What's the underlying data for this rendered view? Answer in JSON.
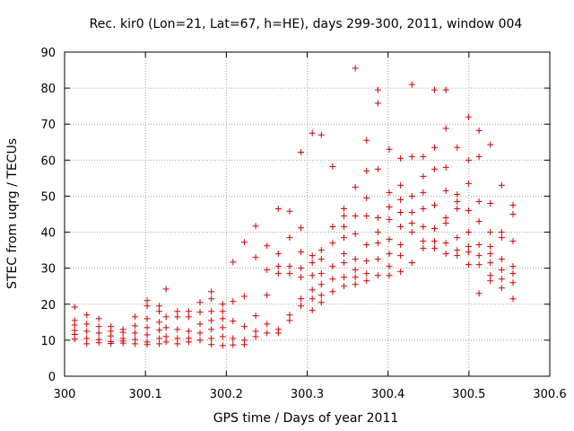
{
  "chart_data": {
    "type": "scatter",
    "title": "Rec. kir0 (Lon=21, Lat=67, h=HE), days 299-300, 2011, window 004",
    "xlabel": "GPS time / Days of year 2011",
    "ylabel": "STEC from uqrg / TECUs",
    "xlim": [
      300,
      300.6
    ],
    "ylim": [
      0,
      90
    ],
    "xticks": [
      "300",
      "300.1",
      "300.2",
      "300.3",
      "300.4",
      "300.5",
      "300.6"
    ],
    "yticks": [
      "0",
      "10",
      "20",
      "30",
      "40",
      "50",
      "60",
      "70",
      "80",
      "90"
    ],
    "marker": "+",
    "color": "#d40000",
    "series": [
      {
        "name": "STEC",
        "points": [
          [
            300.0125,
            19.2
          ],
          [
            300.0125,
            15.5
          ],
          [
            300.0125,
            14.2
          ],
          [
            300.0125,
            12.7
          ],
          [
            300.0125,
            11.6
          ],
          [
            300.0125,
            10.3
          ],
          [
            300.0274,
            17.0
          ],
          [
            300.0274,
            14.5
          ],
          [
            300.0274,
            12.5
          ],
          [
            300.0274,
            10.5
          ],
          [
            300.0274,
            9.0
          ],
          [
            300.0424,
            16.0
          ],
          [
            300.0424,
            13.8
          ],
          [
            300.0424,
            12.0
          ],
          [
            300.0424,
            10.2
          ],
          [
            300.0424,
            9.3
          ],
          [
            300.0573,
            13.8
          ],
          [
            300.0573,
            12.5
          ],
          [
            300.0573,
            11.2
          ],
          [
            300.0573,
            9.6
          ],
          [
            300.0573,
            9.1
          ],
          [
            300.0723,
            13.0
          ],
          [
            300.0723,
            12.2
          ],
          [
            300.0723,
            10.5
          ],
          [
            300.0723,
            9.8
          ],
          [
            300.0723,
            9.2
          ],
          [
            300.0872,
            16.5
          ],
          [
            300.0872,
            14.0
          ],
          [
            300.0872,
            12.0
          ],
          [
            300.0872,
            10.2
          ],
          [
            300.0872,
            9.0
          ],
          [
            300.1021,
            21.0
          ],
          [
            300.1021,
            19.5
          ],
          [
            300.1021,
            16.0
          ],
          [
            300.1021,
            13.5
          ],
          [
            300.1021,
            11.5
          ],
          [
            300.1021,
            9.5
          ],
          [
            300.1021,
            8.8
          ],
          [
            300.1171,
            19.5
          ],
          [
            300.1171,
            18.0
          ],
          [
            300.1171,
            15.0
          ],
          [
            300.1171,
            12.8
          ],
          [
            300.1171,
            10.5
          ],
          [
            300.1171,
            9.0
          ],
          [
            300.1255,
            24.2
          ],
          [
            300.1255,
            16.5
          ],
          [
            300.1255,
            13.5
          ],
          [
            300.1255,
            11.0
          ],
          [
            300.1255,
            9.5
          ],
          [
            300.1395,
            18.0
          ],
          [
            300.1395,
            16.5
          ],
          [
            300.1395,
            13.0
          ],
          [
            300.1395,
            10.5
          ],
          [
            300.1395,
            9.0
          ],
          [
            300.1535,
            18.0
          ],
          [
            300.1535,
            16.5
          ],
          [
            300.1535,
            12.5
          ],
          [
            300.1535,
            10.5
          ],
          [
            300.1535,
            9.5
          ],
          [
            300.1675,
            20.5
          ],
          [
            300.1675,
            17.8
          ],
          [
            300.1675,
            14.5
          ],
          [
            300.1675,
            12.0
          ],
          [
            300.1675,
            10.0
          ],
          [
            300.1815,
            23.5
          ],
          [
            300.1815,
            21.5
          ],
          [
            300.1815,
            18.0
          ],
          [
            300.1815,
            15.5
          ],
          [
            300.1815,
            13.0
          ],
          [
            300.1815,
            10.5
          ],
          [
            300.1815,
            8.8
          ],
          [
            300.1955,
            20.0
          ],
          [
            300.1955,
            18.0
          ],
          [
            300.1955,
            16.0
          ],
          [
            300.1955,
            13.5
          ],
          [
            300.1955,
            11.0
          ],
          [
            300.1955,
            8.5
          ],
          [
            300.2083,
            31.7
          ],
          [
            300.2083,
            20.8
          ],
          [
            300.2083,
            15.3
          ],
          [
            300.2083,
            10.5
          ],
          [
            300.2083,
            8.7
          ],
          [
            300.2223,
            37.2
          ],
          [
            300.2223,
            22.2
          ],
          [
            300.2223,
            13.8
          ],
          [
            300.2223,
            10.0
          ],
          [
            300.2223,
            8.8
          ],
          [
            300.2363,
            41.7
          ],
          [
            300.2363,
            33.0
          ],
          [
            300.2363,
            16.8
          ],
          [
            300.2363,
            12.5
          ],
          [
            300.2363,
            11.0
          ],
          [
            300.2503,
            36.2
          ],
          [
            300.2503,
            29.5
          ],
          [
            300.2503,
            22.5
          ],
          [
            300.2503,
            14.5
          ],
          [
            300.2503,
            12.0
          ],
          [
            300.2643,
            46.5
          ],
          [
            300.2643,
            34.0
          ],
          [
            300.2643,
            30.5
          ],
          [
            300.2643,
            28.5
          ],
          [
            300.2643,
            13.0
          ],
          [
            300.2643,
            12.0
          ],
          [
            300.2783,
            45.8
          ],
          [
            300.2783,
            38.5
          ],
          [
            300.2783,
            30.5
          ],
          [
            300.2783,
            28.5
          ],
          [
            300.2783,
            17.0
          ],
          [
            300.2783,
            15.5
          ],
          [
            300.2923,
            62.2
          ],
          [
            300.2923,
            41.2
          ],
          [
            300.2923,
            34.5
          ],
          [
            300.2923,
            30.0
          ],
          [
            300.2923,
            27.5
          ],
          [
            300.2923,
            21.5
          ],
          [
            300.2923,
            19.5
          ],
          [
            300.3063,
            67.5
          ],
          [
            300.3063,
            33.5
          ],
          [
            300.3063,
            31.5
          ],
          [
            300.3063,
            28.0
          ],
          [
            300.3063,
            24.0
          ],
          [
            300.3063,
            21.5
          ],
          [
            300.3063,
            18.3
          ],
          [
            300.3175,
            67.0
          ],
          [
            300.3175,
            35.0
          ],
          [
            300.3175,
            32.5
          ],
          [
            300.3175,
            28.5
          ],
          [
            300.3175,
            25.5
          ],
          [
            300.3175,
            22.5
          ],
          [
            300.3175,
            20.5
          ],
          [
            300.3315,
            58.2
          ],
          [
            300.3315,
            41.5
          ],
          [
            300.3315,
            37.0
          ],
          [
            300.3315,
            30.5
          ],
          [
            300.3315,
            27.0
          ],
          [
            300.3315,
            23.5
          ],
          [
            300.3455,
            46.5
          ],
          [
            300.3455,
            44.5
          ],
          [
            300.3455,
            41.5
          ],
          [
            300.3455,
            38.5
          ],
          [
            300.3455,
            34.0
          ],
          [
            300.3455,
            31.5
          ],
          [
            300.3455,
            27.5
          ],
          [
            300.3455,
            25.0
          ],
          [
            300.3595,
            85.5
          ],
          [
            300.3595,
            52.5
          ],
          [
            300.3595,
            44.5
          ],
          [
            300.3595,
            39.5
          ],
          [
            300.3595,
            32.5
          ],
          [
            300.3595,
            29.5
          ],
          [
            300.3595,
            27.5
          ],
          [
            300.3595,
            25.5
          ],
          [
            300.3735,
            65.5
          ],
          [
            300.3735,
            57.0
          ],
          [
            300.3735,
            49.5
          ],
          [
            300.3735,
            44.5
          ],
          [
            300.3735,
            36.5
          ],
          [
            300.3735,
            32.0
          ],
          [
            300.3735,
            28.5
          ],
          [
            300.3735,
            26.5
          ],
          [
            300.3875,
            79.5
          ],
          [
            300.3875,
            75.8
          ],
          [
            300.3875,
            57.5
          ],
          [
            300.3875,
            44.0
          ],
          [
            300.3875,
            40.0
          ],
          [
            300.3875,
            37.0
          ],
          [
            300.3875,
            32.5
          ],
          [
            300.3875,
            28.0
          ],
          [
            300.4015,
            63.0
          ],
          [
            300.4015,
            51.0
          ],
          [
            300.4015,
            47.0
          ],
          [
            300.4015,
            43.5
          ],
          [
            300.4015,
            38.0
          ],
          [
            300.4015,
            34.0
          ],
          [
            300.4015,
            30.5
          ],
          [
            300.4015,
            28.0
          ],
          [
            300.4155,
            60.5
          ],
          [
            300.4155,
            53.0
          ],
          [
            300.4155,
            49.0
          ],
          [
            300.4155,
            45.5
          ],
          [
            300.4155,
            41.5
          ],
          [
            300.4155,
            36.5
          ],
          [
            300.4155,
            33.5
          ],
          [
            300.4155,
            29.0
          ],
          [
            300.4295,
            81.0
          ],
          [
            300.4295,
            61.0
          ],
          [
            300.4295,
            50.0
          ],
          [
            300.4295,
            45.5
          ],
          [
            300.4295,
            42.5
          ],
          [
            300.4295,
            40.0
          ],
          [
            300.4295,
            31.5
          ],
          [
            300.4435,
            61.0
          ],
          [
            300.4435,
            55.5
          ],
          [
            300.4435,
            51.0
          ],
          [
            300.4435,
            46.5
          ],
          [
            300.4435,
            41.5
          ],
          [
            300.4435,
            37.5
          ],
          [
            300.4435,
            35.5
          ],
          [
            300.4575,
            79.5
          ],
          [
            300.4575,
            63.5
          ],
          [
            300.4575,
            57.5
          ],
          [
            300.4575,
            47.5
          ],
          [
            300.4575,
            41.0
          ],
          [
            300.4575,
            37.5
          ],
          [
            300.4575,
            35.5
          ],
          [
            300.4715,
            79.5
          ],
          [
            300.4715,
            68.8
          ],
          [
            300.4715,
            58.0
          ],
          [
            300.4715,
            51.5
          ],
          [
            300.4715,
            44.0
          ],
          [
            300.4715,
            42.5
          ],
          [
            300.4715,
            37.0
          ],
          [
            300.4715,
            34.0
          ],
          [
            300.4855,
            63.5
          ],
          [
            300.4855,
            50.5
          ],
          [
            300.4855,
            48.5
          ],
          [
            300.4855,
            46.5
          ],
          [
            300.4855,
            38.5
          ],
          [
            300.4855,
            35.0
          ],
          [
            300.4855,
            33.5
          ],
          [
            300.4995,
            72.0
          ],
          [
            300.4995,
            60.0
          ],
          [
            300.4995,
            53.5
          ],
          [
            300.4995,
            46.0
          ],
          [
            300.4995,
            40.0
          ],
          [
            300.4995,
            36.0
          ],
          [
            300.4995,
            34.5
          ],
          [
            300.4995,
            31.0
          ],
          [
            300.5125,
            68.2
          ],
          [
            300.5125,
            61.0
          ],
          [
            300.5125,
            48.5
          ],
          [
            300.5125,
            43.0
          ],
          [
            300.5125,
            36.5
          ],
          [
            300.5125,
            33.5
          ],
          [
            300.5125,
            31.0
          ],
          [
            300.5125,
            23.0
          ],
          [
            300.5265,
            64.3
          ],
          [
            300.5265,
            48.0
          ],
          [
            300.5265,
            40.0
          ],
          [
            300.5265,
            36.0
          ],
          [
            300.5265,
            34.0
          ],
          [
            300.5265,
            31.5
          ],
          [
            300.5265,
            28.0
          ],
          [
            300.5265,
            26.5
          ],
          [
            300.5405,
            53.0
          ],
          [
            300.5405,
            40.0
          ],
          [
            300.5405,
            38.5
          ],
          [
            300.5405,
            32.5
          ],
          [
            300.5405,
            29.5
          ],
          [
            300.5405,
            27.0
          ],
          [
            300.5405,
            24.5
          ],
          [
            300.5545,
            47.5
          ],
          [
            300.5545,
            45.0
          ],
          [
            300.5545,
            37.5
          ],
          [
            300.5545,
            30.5
          ],
          [
            300.5545,
            28.5
          ],
          [
            300.5545,
            26.0
          ],
          [
            300.5545,
            21.5
          ]
        ]
      }
    ]
  }
}
